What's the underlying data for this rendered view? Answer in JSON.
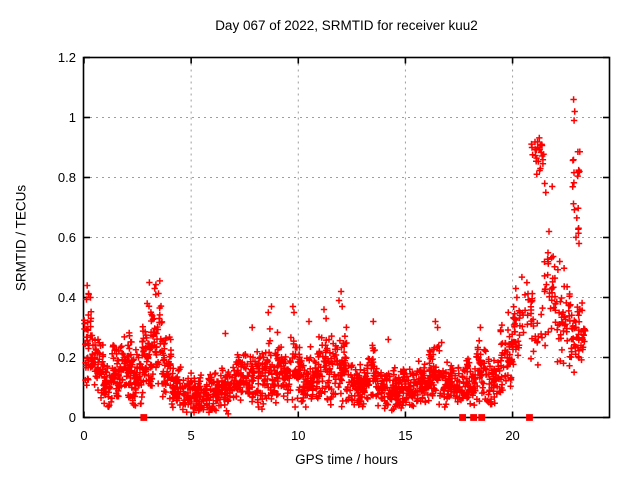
{
  "title": "Day 067 of 2022, SRMTID for receiver kuu2",
  "xlabel": "GPS time / hours",
  "ylabel": "SRMTID / TECUs",
  "colors": {
    "points": "#ff0000",
    "grid": "#9e9e9e",
    "axis": "#000000",
    "background": "#ffffff",
    "text": "#000000"
  },
  "chart_data": {
    "type": "scatter",
    "title": "Day 067 of 2022, SRMTID for receiver kuu2",
    "xlabel": "GPS time / hours",
    "ylabel": "SRMTID / TECUs",
    "xlim": [
      0,
      24.5
    ],
    "ylim": [
      0,
      1.2
    ],
    "x_ticks": [
      0,
      5,
      10,
      15,
      20
    ],
    "y_ticks": [
      0,
      0.2,
      0.4,
      0.6,
      0.8,
      1,
      1.2
    ],
    "y_tick_labels": [
      "0",
      "0.2",
      "0.4",
      "0.6",
      "0.8",
      "1",
      "1.2"
    ],
    "grid": true,
    "legend": "none",
    "marker": "plus",
    "marker_color": "#ff0000",
    "density_segments_format": [
      "t_start_hours",
      "t_end_hours",
      "n_points",
      "center_tecu",
      "half_range_tecu"
    ],
    "density_segments": [
      [
        0.0,
        0.35,
        40,
        0.27,
        0.18
      ],
      [
        0.35,
        0.9,
        55,
        0.17,
        0.13
      ],
      [
        0.9,
        1.3,
        45,
        0.11,
        0.09
      ],
      [
        1.3,
        1.85,
        55,
        0.15,
        0.11
      ],
      [
        1.85,
        2.25,
        45,
        0.17,
        0.13
      ],
      [
        2.25,
        2.7,
        45,
        0.13,
        0.1
      ],
      [
        2.7,
        3.0,
        35,
        0.2,
        0.14
      ],
      [
        3.0,
        3.65,
        65,
        0.27,
        0.2
      ],
      [
        3.65,
        4.1,
        45,
        0.17,
        0.13
      ],
      [
        4.1,
        4.6,
        50,
        0.1,
        0.08
      ],
      [
        4.6,
        6.4,
        170,
        0.075,
        0.077
      ],
      [
        6.4,
        7.1,
        65,
        0.1,
        0.08
      ],
      [
        7.1,
        7.8,
        65,
        0.13,
        0.1
      ],
      [
        7.8,
        8.4,
        55,
        0.13,
        0.11
      ],
      [
        8.4,
        9.2,
        75,
        0.16,
        0.14
      ],
      [
        9.2,
        9.6,
        40,
        0.12,
        0.09
      ],
      [
        9.6,
        10.1,
        45,
        0.16,
        0.14
      ],
      [
        10.1,
        10.9,
        75,
        0.13,
        0.11
      ],
      [
        10.9,
        11.6,
        65,
        0.16,
        0.14
      ],
      [
        11.6,
        12.25,
        60,
        0.17,
        0.15
      ],
      [
        12.25,
        13.2,
        85,
        0.11,
        0.09
      ],
      [
        13.2,
        13.7,
        45,
        0.15,
        0.12
      ],
      [
        13.7,
        15.3,
        145,
        0.095,
        0.08
      ],
      [
        15.3,
        16.1,
        75,
        0.11,
        0.085
      ],
      [
        16.1,
        16.7,
        55,
        0.15,
        0.12
      ],
      [
        16.7,
        17.6,
        80,
        0.11,
        0.085
      ],
      [
        17.6,
        18.3,
        60,
        0.12,
        0.09
      ],
      [
        18.3,
        18.75,
        40,
        0.15,
        0.12
      ],
      [
        18.75,
        19.4,
        55,
        0.12,
        0.09
      ],
      [
        19.4,
        20.0,
        55,
        0.19,
        0.13
      ],
      [
        20.0,
        20.35,
        30,
        0.28,
        0.15
      ],
      [
        20.4,
        20.8,
        12,
        0.38,
        0.14
      ],
      [
        20.85,
        21.45,
        26,
        0.88,
        0.08
      ],
      [
        20.85,
        21.45,
        25,
        0.32,
        0.16
      ],
      [
        21.45,
        22.0,
        32,
        0.42,
        0.2
      ],
      [
        22.0,
        22.6,
        35,
        0.33,
        0.18
      ],
      [
        22.6,
        23.4,
        60,
        0.28,
        0.18
      ],
      [
        22.7,
        23.15,
        12,
        0.82,
        0.08
      ],
      [
        22.75,
        23.1,
        8,
        0.66,
        0.07
      ]
    ],
    "outlier_points": [
      [
        0.15,
        0.44
      ],
      [
        0.22,
        0.41
      ],
      [
        2.95,
        0.38
      ],
      [
        3.05,
        0.45
      ],
      [
        3.3,
        0.43
      ],
      [
        3.35,
        0.41
      ],
      [
        6.6,
        0.28
      ],
      [
        6.73,
        0.012
      ],
      [
        7.85,
        0.3
      ],
      [
        8.6,
        0.35
      ],
      [
        8.75,
        0.37
      ],
      [
        9.75,
        0.37
      ],
      [
        9.8,
        0.35
      ],
      [
        10.5,
        0.32
      ],
      [
        11.2,
        0.36
      ],
      [
        11.3,
        0.33
      ],
      [
        11.9,
        0.39
      ],
      [
        12.0,
        0.42
      ],
      [
        12.05,
        0.37
      ],
      [
        13.5,
        0.32
      ],
      [
        14.2,
        0.26
      ],
      [
        16.4,
        0.32
      ],
      [
        16.5,
        0.3
      ],
      [
        18.5,
        0.3
      ],
      [
        19.8,
        0.35
      ],
      [
        20.15,
        0.43
      ],
      [
        20.2,
        0.4
      ],
      [
        21.5,
        0.78
      ],
      [
        21.55,
        0.75
      ],
      [
        21.85,
        0.77
      ],
      [
        21.7,
        0.62
      ],
      [
        22.2,
        0.52
      ],
      [
        22.85,
        1.06
      ],
      [
        22.9,
        1.02
      ],
      [
        22.87,
        0.99
      ],
      [
        23.1,
        0.58
      ]
    ],
    "zero_flag_square_hours": [
      2.79,
      17.67,
      18.18,
      18.56,
      20.79
    ]
  }
}
